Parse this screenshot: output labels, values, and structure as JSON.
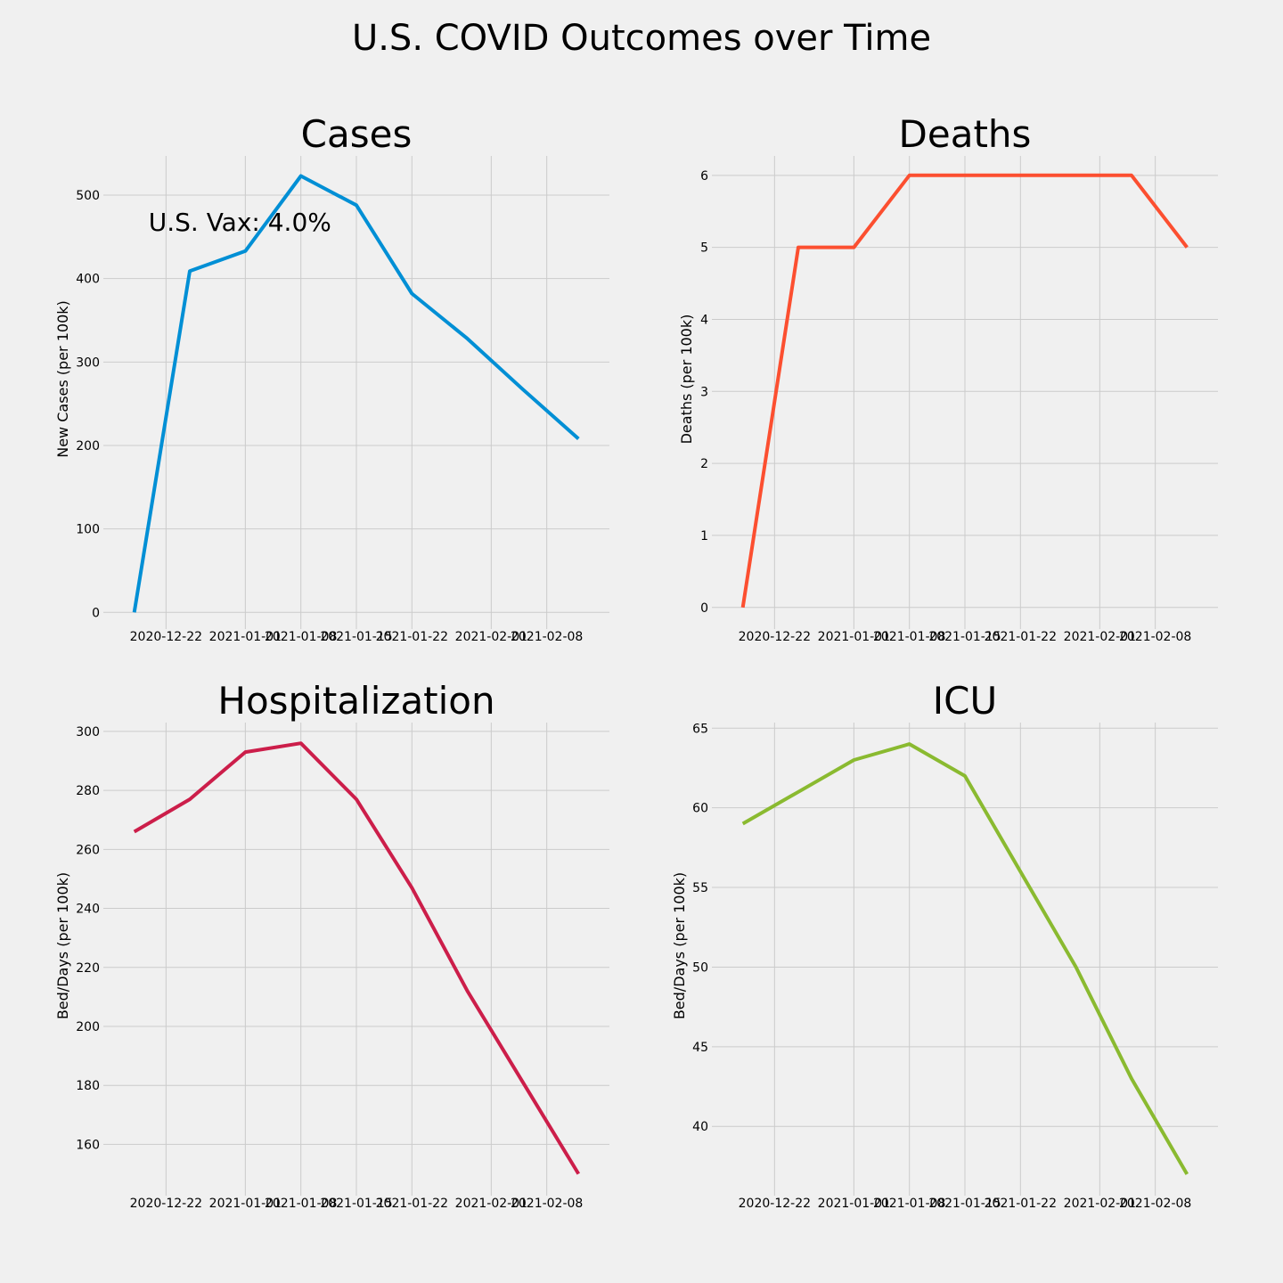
{
  "figure": {
    "title": "U.S. COVID Outcomes over Time"
  },
  "chart_data": [
    {
      "type": "line",
      "title": "Cases",
      "xlabel": "",
      "ylabel": "New Cases (per 100k)",
      "x": [
        "2020-12-18",
        "2020-12-25",
        "2021-01-01",
        "2021-01-08",
        "2021-01-15",
        "2021-01-22",
        "2021-01-29",
        "2021-02-05",
        "2021-02-12"
      ],
      "values": [
        0,
        409,
        433,
        523,
        488,
        382,
        328,
        267,
        208
      ],
      "color": "#008fd5",
      "ylim": [
        -20,
        547
      ],
      "yticks": [
        0,
        100,
        200,
        300,
        400,
        500
      ],
      "xticks": [
        "2020-12-22",
        "2021-01-01",
        "2021-01-08",
        "2021-01-15",
        "2021-01-22",
        "2021-02-01",
        "2021-02-08"
      ],
      "annotation": "U.S. Vax: 4.0%",
      "grid": true
    },
    {
      "type": "line",
      "title": "Deaths",
      "xlabel": "",
      "ylabel": "Deaths (per 100k)",
      "x": [
        "2020-12-18",
        "2020-12-25",
        "2021-01-01",
        "2021-01-08",
        "2021-01-15",
        "2021-01-22",
        "2021-01-29",
        "2021-02-05",
        "2021-02-12"
      ],
      "values": [
        0,
        5,
        5,
        6,
        6,
        6,
        6,
        6,
        5
      ],
      "color": "#fc4f30",
      "ylim": [
        -0.3,
        6.27
      ],
      "yticks": [
        0,
        1,
        2,
        3,
        4,
        5,
        6
      ],
      "xticks": [
        "2020-12-22",
        "2021-01-01",
        "2021-01-08",
        "2021-01-15",
        "2021-01-22",
        "2021-02-01",
        "2021-02-08"
      ],
      "grid": true
    },
    {
      "type": "line",
      "title": "Hospitalization",
      "xlabel": "",
      "ylabel": "Bed/Days (per 100k)",
      "x": [
        "2020-12-18",
        "2020-12-25",
        "2021-01-01",
        "2021-01-08",
        "2021-01-15",
        "2021-01-22",
        "2021-01-29",
        "2021-02-05",
        "2021-02-12"
      ],
      "values": [
        266,
        277,
        293,
        296,
        277,
        247,
        212,
        181,
        150
      ],
      "color": "#cc1e4a",
      "ylim": [
        142.6,
        303
      ],
      "yticks": [
        160,
        180,
        200,
        220,
        240,
        260,
        280,
        300
      ],
      "xticks": [
        "2020-12-22",
        "2021-01-01",
        "2021-01-08",
        "2021-01-15",
        "2021-01-22",
        "2021-02-01",
        "2021-02-08"
      ],
      "grid": true
    },
    {
      "type": "line",
      "title": "ICU",
      "xlabel": "",
      "ylabel": "Bed/Days (per 100k)",
      "x": [
        "2020-12-18",
        "2020-12-25",
        "2021-01-01",
        "2021-01-08",
        "2021-01-15",
        "2021-01-22",
        "2021-01-29",
        "2021-02-05",
        "2021-02-12"
      ],
      "values": [
        59,
        61,
        63,
        64,
        62,
        56,
        50,
        43,
        37
      ],
      "color": "#8aba30",
      "ylim": [
        35.65,
        65.35
      ],
      "yticks": [
        40,
        45,
        50,
        55,
        60,
        65
      ],
      "xticks": [
        "2020-12-22",
        "2021-01-01",
        "2021-01-08",
        "2021-01-15",
        "2021-01-22",
        "2021-02-01",
        "2021-02-08"
      ],
      "grid": true
    }
  ]
}
